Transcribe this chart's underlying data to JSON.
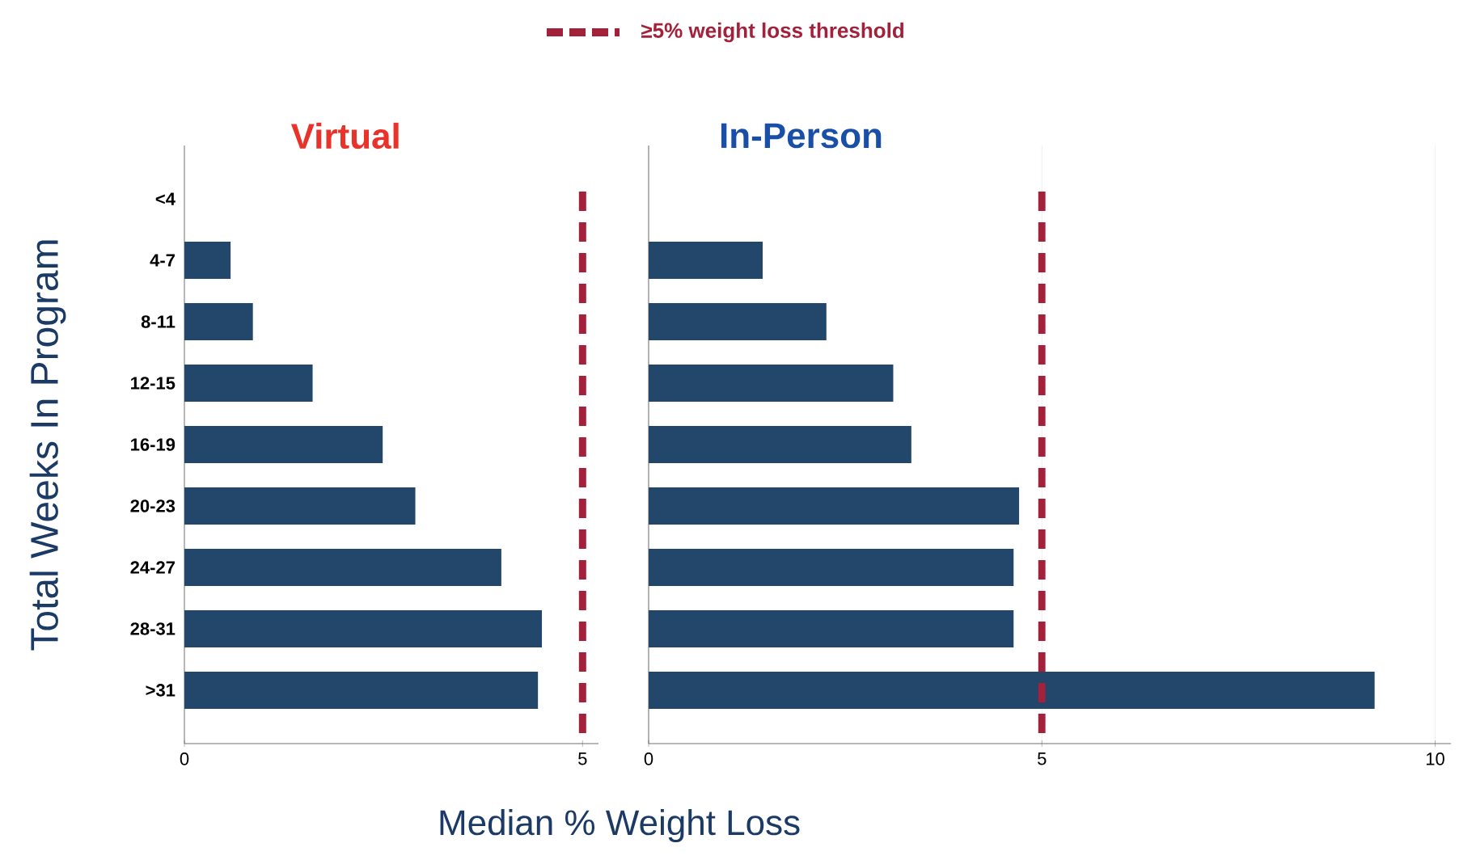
{
  "chart_data": [
    {
      "type": "bar",
      "orientation": "horizontal",
      "title": "Virtual",
      "ylabel": "Total Weeks In Program",
      "xlabel": "Median % Weight Loss",
      "categories": [
        "<4",
        "4-7",
        "8-11",
        "12-15",
        "16-19",
        "20-23",
        "24-27",
        "28-31",
        ">31"
      ],
      "series": [
        {
          "color": "#23466b",
          "values": [
            null,
            0.58,
            0.86,
            1.61,
            2.49,
            2.9,
            3.98,
            4.49,
            4.44
          ]
        }
      ],
      "xlim": [
        0,
        5.2
      ],
      "xticks": [
        0,
        5
      ],
      "legend": "top",
      "ref_lines": [
        {
          "axis": "x",
          "value": 5,
          "label": "≥5% weight loss threshold",
          "color": "#a3213a",
          "line_style": "dashed"
        }
      ]
    },
    {
      "type": "bar",
      "orientation": "horizontal",
      "title": "In-Person",
      "categories": [
        null,
        null,
        null,
        null,
        null,
        null,
        null,
        null,
        null
      ],
      "series": [
        {
          "color": "#23466b",
          "values": [
            null,
            1.45,
            2.26,
            3.11,
            3.34,
            4.71,
            4.64,
            4.64,
            9.23
          ]
        }
      ],
      "xlim": [
        0,
        10.2
      ],
      "xticks": [
        0,
        5,
        10
      ],
      "grid": "x",
      "tick_labels": "x",
      "ref_lines": [
        {
          "axis": "x",
          "value": 5,
          "color": "#a3213a",
          "line_style": "dashed"
        }
      ]
    }
  ]
}
